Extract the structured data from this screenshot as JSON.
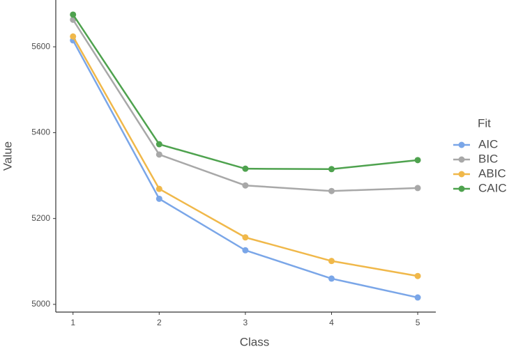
{
  "chart_data": {
    "type": "line",
    "x_label": "Class",
    "y_label": "Value",
    "legend_title": "Fit",
    "legend_position": "right",
    "x": [
      1,
      2,
      3,
      4,
      5
    ],
    "series": [
      {
        "name": "AIC",
        "color": "#7aa6e8",
        "values": [
          5615,
          5246,
          5126,
          5060,
          5016
        ]
      },
      {
        "name": "BIC",
        "color": "#a8a8a8",
        "values": [
          5663,
          5349,
          5277,
          5264,
          5271
        ]
      },
      {
        "name": "ABIC",
        "color": "#f0b84a",
        "values": [
          5624,
          5269,
          5156,
          5101,
          5066
        ]
      },
      {
        "name": "CAIC",
        "color": "#4ea24e",
        "values": [
          5675,
          5373,
          5316,
          5315,
          5336
        ]
      }
    ],
    "xlim": [
      0.8,
      5.21
    ],
    "ylim": [
      4982,
      5709
    ],
    "xticks": [
      1,
      2,
      3,
      4,
      5
    ],
    "yticks": [
      5000,
      5200,
      5400,
      5600
    ],
    "grid": false
  }
}
